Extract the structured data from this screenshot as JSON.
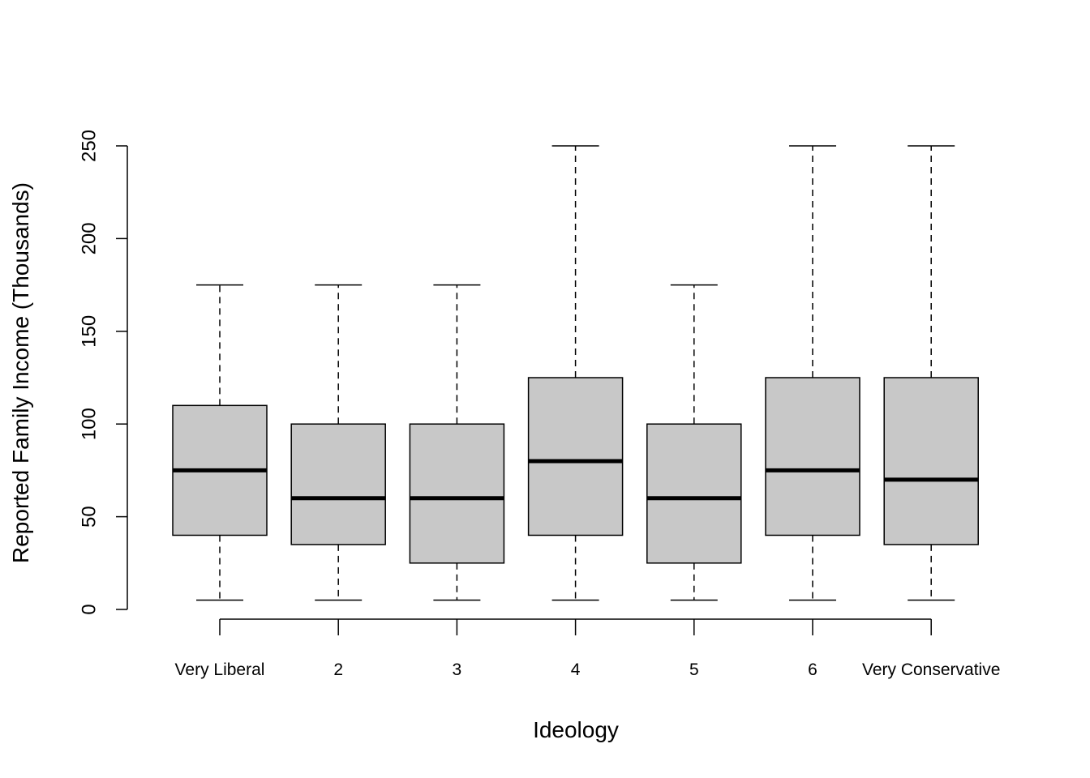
{
  "chart_data": {
    "type": "box",
    "xlabel": "Ideology",
    "ylabel": "Reported Family Income (Thousands)",
    "ylim": [
      0,
      250
    ],
    "yticks": [
      0,
      50,
      100,
      150,
      200,
      250
    ],
    "categories": [
      "Very Liberal",
      "2",
      "3",
      "4",
      "5",
      "6",
      "Very Conservative"
    ],
    "boxes": [
      {
        "min": 5,
        "q1": 40,
        "median": 75,
        "q3": 110,
        "max": 175
      },
      {
        "min": 5,
        "q1": 35,
        "median": 60,
        "q3": 100,
        "max": 175
      },
      {
        "min": 5,
        "q1": 25,
        "median": 60,
        "q3": 100,
        "max": 175
      },
      {
        "min": 5,
        "q1": 40,
        "median": 80,
        "q3": 125,
        "max": 250
      },
      {
        "min": 5,
        "q1": 25,
        "median": 60,
        "q3": 100,
        "max": 175
      },
      {
        "min": 5,
        "q1": 40,
        "median": 75,
        "q3": 125,
        "max": 250
      },
      {
        "min": 5,
        "q1": 35,
        "median": 70,
        "q3": 125,
        "max": 250
      }
    ],
    "box_color": "#c8c8c8",
    "grid": false
  }
}
